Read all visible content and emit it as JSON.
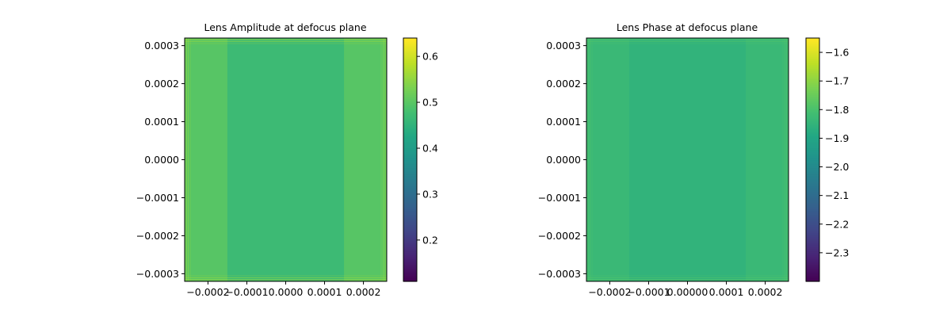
{
  "chart_data": [
    {
      "type": "heatmap",
      "title": "Lens Amplitude at defocus plane",
      "xlim": [
        -0.00026,
        0.00026
      ],
      "ylim": [
        -0.00032,
        0.00032
      ],
      "x_ticks": [
        -0.0002,
        -0.0001,
        0.0,
        0.0001,
        0.0002
      ],
      "x_tick_labels": [
        "−0.0002",
        "−0.0001",
        "0.0000",
        "0.0001",
        "0.0002"
      ],
      "y_ticks": [
        -0.0003,
        -0.0002,
        -0.0001,
        0.0,
        0.0001,
        0.0002,
        0.0003
      ],
      "y_tick_labels": [
        "−0.0003",
        "−0.0002",
        "−0.0001",
        "0.0000",
        "0.0001",
        "0.0002",
        "0.0003"
      ],
      "colormap": "viridis",
      "color_range": [
        0.11,
        0.64
      ],
      "colorbar_ticks": [
        0.2,
        0.3,
        0.4,
        0.5,
        0.6
      ],
      "colorbar_tick_labels": [
        "0.2",
        "0.3",
        "0.4",
        "0.5",
        "0.6"
      ],
      "field": {
        "base_value": 0.5,
        "center_band_value": 0.47,
        "center_band_x": [
          -0.00015,
          0.00015
        ],
        "edge_value": 0.56
      }
    },
    {
      "type": "heatmap",
      "title": "Lens Phase at defocus plane",
      "xlim": [
        -0.00026,
        0.00026
      ],
      "ylim": [
        -0.00032,
        0.00032
      ],
      "x_ticks": [
        -0.0002,
        -0.0001,
        0.0,
        0.0001,
        0.0002
      ],
      "x_tick_labels": [
        "−0.0002",
        "−0.0001",
        "0.00000",
        "0.0001",
        "0.0002"
      ],
      "y_ticks": [
        -0.0003,
        -0.0002,
        -0.0001,
        0.0,
        0.0001,
        0.0002,
        0.0003
      ],
      "y_tick_labels": [
        "−0.0003",
        "−0.0002",
        "−0.0001",
        "0.0000",
        "0.0001",
        "0.0002",
        "0.0003"
      ],
      "colormap": "viridis",
      "color_range": [
        -2.4,
        -1.55
      ],
      "colorbar_ticks": [
        -2.3,
        -2.2,
        -2.1,
        -2.0,
        -1.9,
        -1.8,
        -1.7,
        -1.6
      ],
      "colorbar_tick_labels": [
        "−2.3",
        "−2.2",
        "−2.1",
        "−2.0",
        "−1.9",
        "−1.8",
        "−1.7",
        "−1.6"
      ],
      "field": {
        "base_value": -1.83,
        "center_band_value": -1.85,
        "center_band_x": [
          -0.00015,
          0.00015
        ],
        "edge_value": -1.78
      }
    }
  ]
}
